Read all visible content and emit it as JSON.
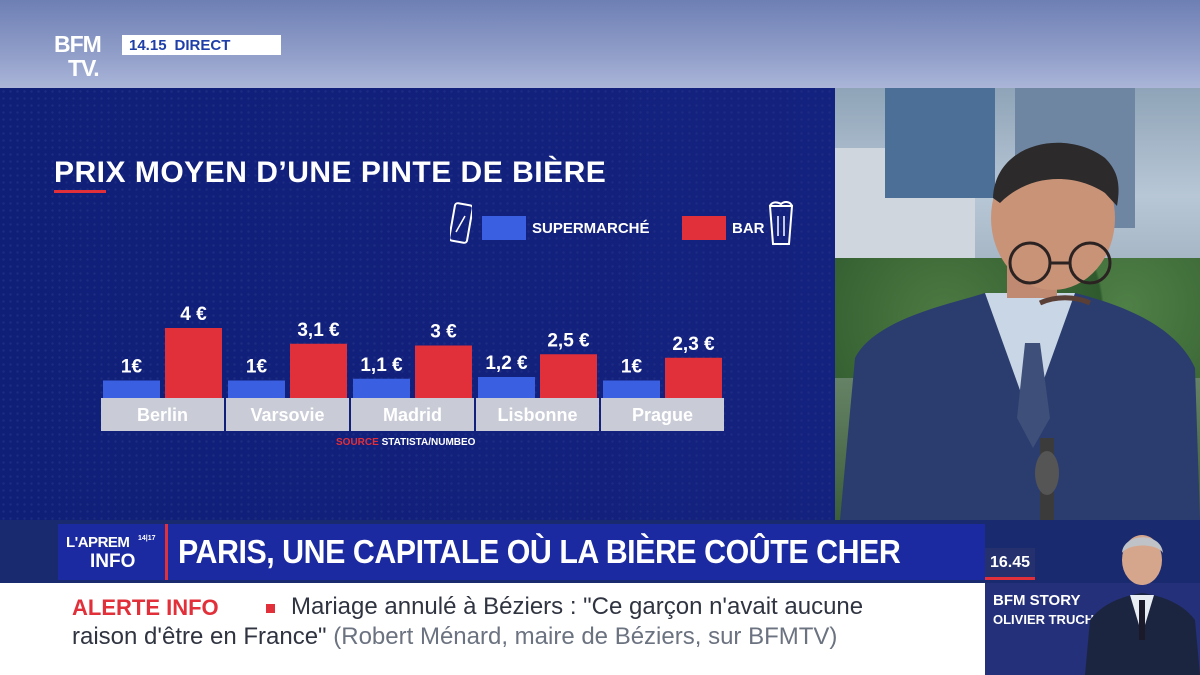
{
  "broadcast": {
    "logo_line1": "BFM",
    "logo_line2": "TV.",
    "time": "14.15",
    "live_label": "DIRECT"
  },
  "chart_data": {
    "type": "bar",
    "title": "PRIX MOYEN D’UNE PINTE DE BIÈRE",
    "categories": [
      "Berlin",
      "Varsovie",
      "Madrid",
      "Lisbonne",
      "Prague"
    ],
    "series": [
      {
        "name": "SUPERMARCHÉ",
        "values": [
          1,
          1,
          1.1,
          1.2,
          1
        ],
        "labels": [
          "1€",
          "1€",
          "1,1 €",
          "1,2 €",
          "1€"
        ],
        "color": "#3a5fe0"
      },
      {
        "name": "BAR",
        "values": [
          4,
          3.1,
          3,
          2.5,
          2.3
        ],
        "labels": [
          "4 €",
          "3,1 €",
          "3 €",
          "2,5 €",
          "2,3 €"
        ],
        "color": "#e2303a"
      }
    ],
    "ylim": [
      0,
      4
    ],
    "legend_position": "top-right",
    "source_label": "SOURCE",
    "source_text": "STATISTA/NUMBEO"
  },
  "topic": {
    "badge_line1": "L'APREM",
    "badge_time": "14|17",
    "badge_line2": "INFO",
    "headline": "PARIS, UNE CAPITALE OÙ LA BIÈRE COÛTE CHER"
  },
  "clock": "16.45",
  "ticker": {
    "label": "ALERTE INFO",
    "line1": "Mariage annulé à Béziers : \"Ce garçon n'avait aucune",
    "line2_quote": "raison d'être en France\"",
    "line2_attribution": "(Robert Ménard, maire de Béziers, sur BFMTV)"
  },
  "show": {
    "name": "BFM STORY",
    "host": "OLIVIER TRUCHOT"
  },
  "colors": {
    "supermarche": "#3a5fe0",
    "bar": "#e2303a",
    "category_box": "#c9ccd6",
    "panel": "#0f1f78"
  }
}
